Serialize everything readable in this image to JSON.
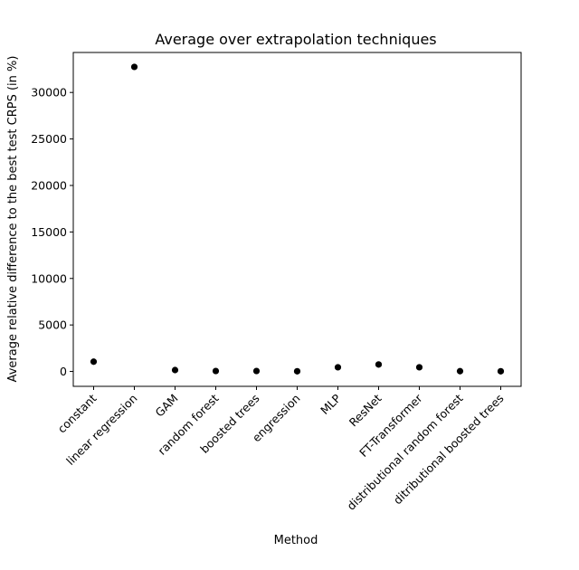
{
  "chart_data": {
    "type": "scatter",
    "title": "Average over extrapolation techniques",
    "xlabel": "Method",
    "ylabel": "Average relative difference to the best test CRPS (in %)",
    "categories": [
      "constant",
      "linear regression",
      "GAM",
      "random forest",
      "boosted trees",
      "engression",
      "MLP",
      "ResNet",
      "FT-Transformer",
      "distributional random forest",
      "ditributional boosted trees"
    ],
    "values": [
      1050,
      32750,
      150,
      50,
      50,
      20,
      450,
      750,
      450,
      30,
      20
    ],
    "ylim": [
      -1600,
      34300
    ],
    "yticks": [
      0,
      5000,
      10000,
      15000,
      20000,
      25000,
      30000
    ],
    "grid": false,
    "marker_color": "#000000"
  }
}
